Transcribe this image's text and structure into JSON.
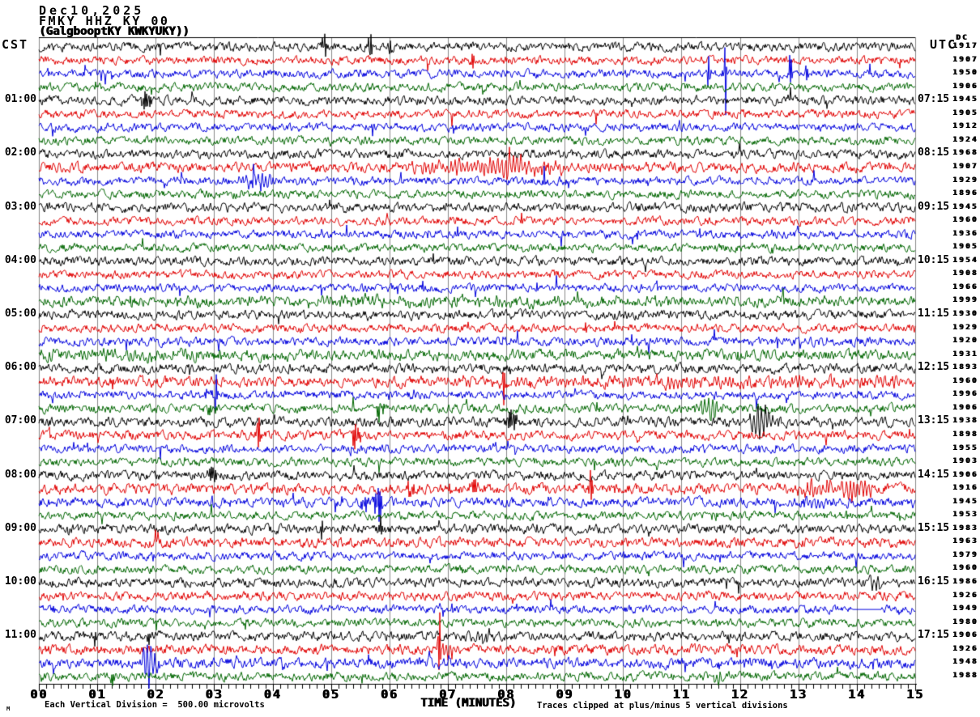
{
  "meta": {
    "date": "Dec10,2025",
    "station_line": "FMKY HHZ KY 00",
    "location_line": "(GalgbooptKY KWKYUKY))"
  },
  "corner_mark": "M",
  "axis": {
    "left_tz": "CST",
    "right_tz": "UTC",
    "dc_label": "DC",
    "x_title": "TIME (MINUTES)",
    "x_tick_labels": [
      "00",
      "01",
      "02",
      "03",
      "04",
      "05",
      "06",
      "07",
      "08",
      "09",
      "10",
      "11",
      "12",
      "13",
      "14",
      "15"
    ],
    "footnote_left": "Each Vertical Division =  500.00 microvolts",
    "footnote_right": "Traces clipped at plus/minus 5 vertical divisions"
  },
  "left_time_labels": [
    {
      "row": 4,
      "label": "01:00"
    },
    {
      "row": 8,
      "label": "02:00"
    },
    {
      "row": 12,
      "label": "03:00"
    },
    {
      "row": 16,
      "label": "04:00"
    },
    {
      "row": 20,
      "label": "05:00"
    },
    {
      "row": 24,
      "label": "06:00"
    },
    {
      "row": 28,
      "label": "07:00"
    },
    {
      "row": 32,
      "label": "08:00"
    },
    {
      "row": 36,
      "label": "09:00"
    },
    {
      "row": 40,
      "label": "10:00"
    },
    {
      "row": 44,
      "label": "11:00"
    }
  ],
  "right_time_labels": [
    {
      "row": 4,
      "label": "07:15"
    },
    {
      "row": 8,
      "label": "08:15"
    },
    {
      "row": 12,
      "label": "09:15"
    },
    {
      "row": 16,
      "label": "10:15"
    },
    {
      "row": 20,
      "label": "11:15"
    },
    {
      "row": 24,
      "label": "12:15"
    },
    {
      "row": 28,
      "label": "13:15"
    },
    {
      "row": 32,
      "label": "14:15"
    },
    {
      "row": 36,
      "label": "15:15"
    },
    {
      "row": 40,
      "label": "16:15"
    },
    {
      "row": 44,
      "label": "17:15"
    }
  ],
  "dc_values": [
    "1917",
    "1907",
    "1950",
    "1906",
    "1945",
    "1905",
    "1912",
    "1924",
    "1968",
    "1907",
    "1929",
    "1896",
    "1945",
    "1960",
    "1936",
    "1905",
    "1954",
    "1908",
    "1966",
    "1999",
    "1930",
    "1929",
    "1920",
    "1931",
    "1893",
    "1960",
    "1996",
    "1906",
    "1938",
    "1898",
    "1955",
    "1903",
    "1906",
    "1916",
    "1945",
    "1953",
    "1983",
    "1963",
    "1979",
    "1960",
    "1986",
    "1926",
    "1949",
    "1980",
    "1906",
    "1926",
    "1948",
    "1988"
  ],
  "style": {
    "trace_colors": [
      "#000000",
      "#e00000",
      "#0000dd",
      "#006600"
    ],
    "grid_color": "#8a8a8a",
    "text_color": "#000000",
    "background": "#ffffff"
  },
  "chart_data": {
    "type": "seismogram-helicorder",
    "title": "FMKY HHZ KY 00 helicorder, Dec10,2025",
    "x_unit": "minutes",
    "x_range": [
      0,
      15
    ],
    "minutes_per_row": 15,
    "rows_per_hour": 4,
    "vertical_division_microvolts": 500,
    "clip_divisions": 5,
    "color_cycle_cst": [
      "black=:00",
      "red=:15",
      "blue=:30",
      "green=:45"
    ],
    "rows": [
      {
        "t": "00:00",
        "c": 0,
        "n": 0.165,
        "e": [
          [
            4.88,
            1.6,
            0.025
          ],
          [
            5.67,
            1.95,
            0.02
          ],
          [
            6.0,
            0.85,
            0.02
          ]
        ]
      },
      {
        "t": "00:15",
        "c": 1,
        "n": 0.155,
        "e": [
          [
            7.43,
            1.0,
            0.015
          ]
        ]
      },
      {
        "t": "00:30",
        "c": 2,
        "n": 0.155,
        "e": [
          [
            11.74,
            4.1,
            0.018
          ],
          [
            11.46,
            1.35,
            0.015
          ],
          [
            12.87,
            2.05,
            0.018
          ],
          [
            13.15,
            0.85,
            0.015
          ]
        ]
      },
      {
        "t": "00:45",
        "c": 3,
        "n": 0.155,
        "e": [
          [
            1.92,
            0.8,
            0.02
          ]
        ]
      },
      {
        "t": "01:00",
        "c": 0,
        "n": 0.165,
        "e": [
          [
            1.85,
            0.65,
            0.06
          ],
          [
            12.85,
            0.65,
            0.025
          ]
        ]
      },
      {
        "t": "01:15",
        "c": 1,
        "n": 0.155,
        "e": []
      },
      {
        "t": "01:30",
        "c": 2,
        "n": 0.155,
        "e": []
      },
      {
        "t": "01:45",
        "c": 3,
        "n": 0.155,
        "e": []
      },
      {
        "t": "02:00",
        "c": 0,
        "n": 0.165,
        "e": []
      },
      {
        "t": "02:15",
        "c": 1,
        "n": 0.185,
        "e": [
          [
            7.5,
            0.5,
            0.9
          ],
          [
            8.3,
            0.36,
            0.5
          ]
        ]
      },
      {
        "t": "02:30",
        "c": 2,
        "n": 0.155,
        "e": [
          [
            3.75,
            0.55,
            0.2
          ],
          [
            3.67,
            1.0,
            0.02
          ],
          [
            8.65,
            0.8,
            0.013
          ]
        ]
      },
      {
        "t": "02:45",
        "c": 3,
        "n": 0.155,
        "e": []
      },
      {
        "t": "03:00",
        "c": 0,
        "n": 0.175,
        "e": []
      },
      {
        "t": "03:15",
        "c": 1,
        "n": 0.155,
        "e": []
      },
      {
        "t": "03:30",
        "c": 2,
        "n": 0.155,
        "e": []
      },
      {
        "t": "03:45",
        "c": 3,
        "n": 0.155,
        "e": []
      },
      {
        "t": "04:00",
        "c": 0,
        "n": 0.165,
        "e": []
      },
      {
        "t": "04:15",
        "c": 1,
        "n": 0.155,
        "e": []
      },
      {
        "t": "04:30",
        "c": 2,
        "n": 0.155,
        "e": []
      },
      {
        "t": "04:45",
        "c": 3,
        "n": 0.19,
        "e": [
          [
            7.0,
            0.18,
            4.0
          ]
        ]
      },
      {
        "t": "05:00",
        "c": 0,
        "n": 0.175,
        "e": []
      },
      {
        "t": "05:15",
        "c": 1,
        "n": 0.155,
        "e": []
      },
      {
        "t": "05:30",
        "c": 2,
        "n": 0.165,
        "e": []
      },
      {
        "t": "05:45",
        "c": 3,
        "n": 0.2,
        "e": [
          [
            2.2,
            0.24,
            1.8
          ]
        ]
      },
      {
        "t": "06:00",
        "c": 0,
        "n": 0.175,
        "e": [
          [
            8.05,
            0.55,
            0.04
          ]
        ]
      },
      {
        "t": "06:15",
        "c": 1,
        "n": 0.195,
        "e": [
          [
            7.97,
            1.7,
            0.02
          ],
          [
            11.5,
            0.24,
            3.0
          ]
        ]
      },
      {
        "t": "06:30",
        "c": 2,
        "n": 0.155,
        "e": [
          [
            3.02,
            2.4,
            0.022
          ],
          [
            2.9,
            0.48,
            0.06
          ]
        ]
      },
      {
        "t": "06:45",
        "c": 3,
        "n": 0.17,
        "e": [
          [
            5.82,
            0.9,
            0.05
          ],
          [
            11.5,
            0.8,
            0.13
          ],
          [
            2.95,
            0.42,
            0.05
          ]
        ]
      },
      {
        "t": "07:00",
        "c": 0,
        "n": 0.18,
        "e": [
          [
            8.1,
            0.66,
            0.07
          ],
          [
            12.42,
            0.9,
            0.15
          ],
          [
            12.3,
            0.48,
            0.1
          ],
          [
            10.0,
            0.36,
            0.08
          ]
        ]
      },
      {
        "t": "07:15",
        "c": 1,
        "n": 0.17,
        "e": [
          [
            3.75,
            1.8,
            0.022
          ],
          [
            5.42,
            0.8,
            0.05
          ]
        ]
      },
      {
        "t": "07:30",
        "c": 2,
        "n": 0.155,
        "e": []
      },
      {
        "t": "07:45",
        "c": 3,
        "n": 0.155,
        "e": []
      },
      {
        "t": "08:00",
        "c": 0,
        "n": 0.175,
        "e": [
          [
            2.95,
            0.66,
            0.06
          ]
        ]
      },
      {
        "t": "08:15",
        "c": 1,
        "n": 0.195,
        "e": [
          [
            6.35,
            0.54,
            0.07
          ],
          [
            7.45,
            0.48,
            0.05
          ],
          [
            9.45,
            1.95,
            0.02
          ],
          [
            13.3,
            0.48,
            0.3
          ],
          [
            13.9,
            0.8,
            0.1
          ],
          [
            13.47,
            1.1,
            0.015
          ],
          [
            14.15,
            0.6,
            0.12
          ]
        ]
      },
      {
        "t": "08:30",
        "c": 2,
        "n": 0.175,
        "e": [
          [
            5.8,
            1.8,
            0.04
          ],
          [
            5.6,
            0.54,
            0.07
          ],
          [
            13.3,
            0.3,
            0.3
          ]
        ]
      },
      {
        "t": "08:45",
        "c": 3,
        "n": 0.155,
        "e": []
      },
      {
        "t": "09:00",
        "c": 0,
        "n": 0.175,
        "e": [
          [
            4.85,
            0.66,
            0.04
          ],
          [
            5.85,
            0.8,
            0.035
          ]
        ]
      },
      {
        "t": "09:15",
        "c": 1,
        "n": 0.185,
        "e": []
      },
      {
        "t": "09:30",
        "c": 2,
        "n": 0.155,
        "e": []
      },
      {
        "t": "09:45",
        "c": 3,
        "n": 0.155,
        "e": []
      },
      {
        "t": "10:00",
        "c": 0,
        "n": 0.17,
        "e": [
          [
            14.3,
            0.48,
            0.1
          ]
        ]
      },
      {
        "t": "10:15",
        "c": 1,
        "n": 0.165,
        "e": []
      },
      {
        "t": "10:30",
        "c": 2,
        "n": 0.155,
        "e": [],
        "flat": [
          13.93,
          14.42
        ]
      },
      {
        "t": "10:45",
        "c": 3,
        "n": 0.155,
        "e": []
      },
      {
        "t": "11:00",
        "c": 0,
        "n": 0.175,
        "e": [
          [
            0.95,
            0.73,
            0.03
          ],
          [
            1.9,
            0.54,
            0.03
          ],
          [
            7.65,
            0.54,
            0.1
          ]
        ]
      },
      {
        "t": "11:15",
        "c": 1,
        "n": 0.185,
        "e": [
          [
            6.85,
            2.8,
            0.022
          ],
          [
            7.0,
            0.6,
            0.1
          ]
        ]
      },
      {
        "t": "11:30",
        "c": 2,
        "n": 0.19,
        "e": [
          [
            1.9,
            1.7,
            0.09
          ],
          [
            11.6,
            0.8,
            0.02
          ],
          [
            5.64,
            0.85,
            0.012
          ]
        ]
      },
      {
        "t": "11:45",
        "c": 3,
        "n": 0.165,
        "e": [
          [
            1.25,
            0.54,
            0.025
          ],
          [
            0.05,
            0.6,
            0.015
          ],
          [
            11.6,
            0.42,
            0.1
          ]
        ]
      }
    ]
  }
}
